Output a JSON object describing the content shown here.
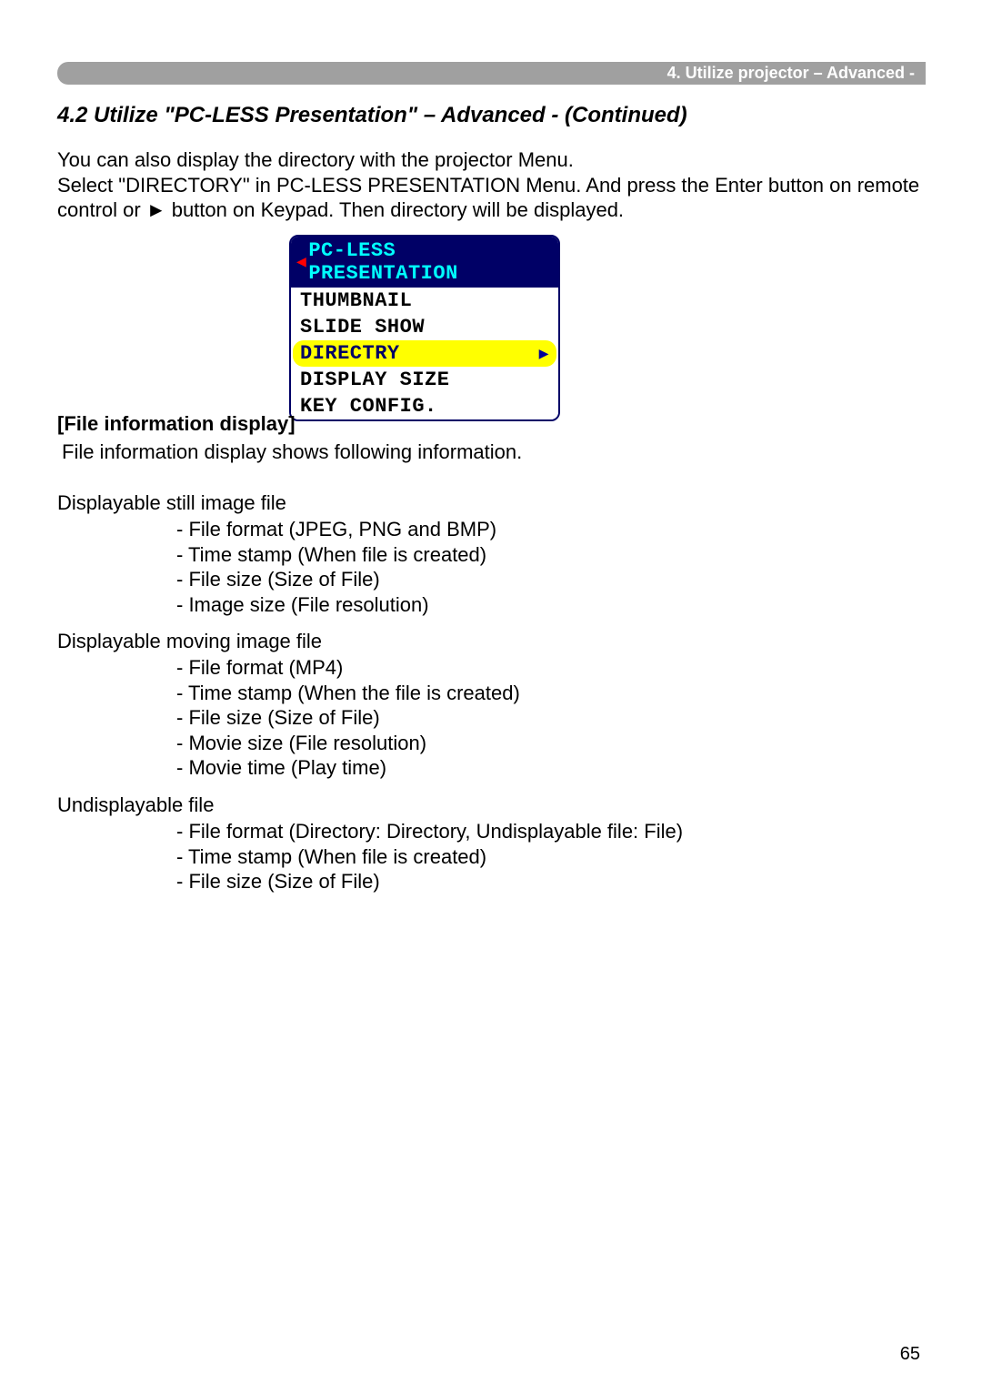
{
  "header": {
    "text": "4. Utilize projector – Advanced -"
  },
  "section_title": "4.2 Utilize \"PC-LESS Presentation\" – Advanced - (Continued)",
  "intro": {
    "line1": "You can also display the directory with the projector Menu.",
    "line2": "Select \"DIRECTORY\" in PC-LESS PRESENTATION Menu. And press the Enter button on remote control or ► button on Keypad. Then directory will be displayed."
  },
  "menu": {
    "title": "PC-LESS PRESENTATION",
    "items": [
      {
        "label": "THUMBNAIL",
        "selected": false
      },
      {
        "label": "SLIDE SHOW",
        "selected": false
      },
      {
        "label": "DIRECTRY",
        "selected": true
      },
      {
        "label": "DISPLAY SIZE",
        "selected": false
      },
      {
        "label": "KEY CONFIG.",
        "selected": false
      }
    ],
    "colors": {
      "title_bg": "#000066",
      "title_fg": "#00ffff",
      "arrow_left": "#ff0000",
      "selected_bg": "#ffff00",
      "selected_fg": "#000066",
      "arrow_right": "#000099",
      "item_bg": "#ffffff",
      "item_fg": "#000000",
      "border": "#000066"
    }
  },
  "file_info": {
    "heading": "[File information display]",
    "sub": "File information display shows following information."
  },
  "section1": {
    "title": "Displayable still image file",
    "items": [
      "- File format (JPEG, PNG and BMP)",
      "- Time stamp (When file is created)",
      "- File size (Size of File)",
      "- Image size (File resolution)"
    ]
  },
  "section2": {
    "title": "Displayable moving image file",
    "items": [
      "- File format (MP4)",
      "- Time stamp (When the file is created)",
      "- File size (Size of File)",
      "- Movie size (File resolution)",
      "- Movie time (Play time)"
    ]
  },
  "section3": {
    "title": "Undisplayable file",
    "items": [
      "- File format (Directory: Directory, Undisplayable file: File)",
      "- Time stamp (When file is created)",
      "- File size (Size of File)"
    ]
  },
  "page_number": "65"
}
